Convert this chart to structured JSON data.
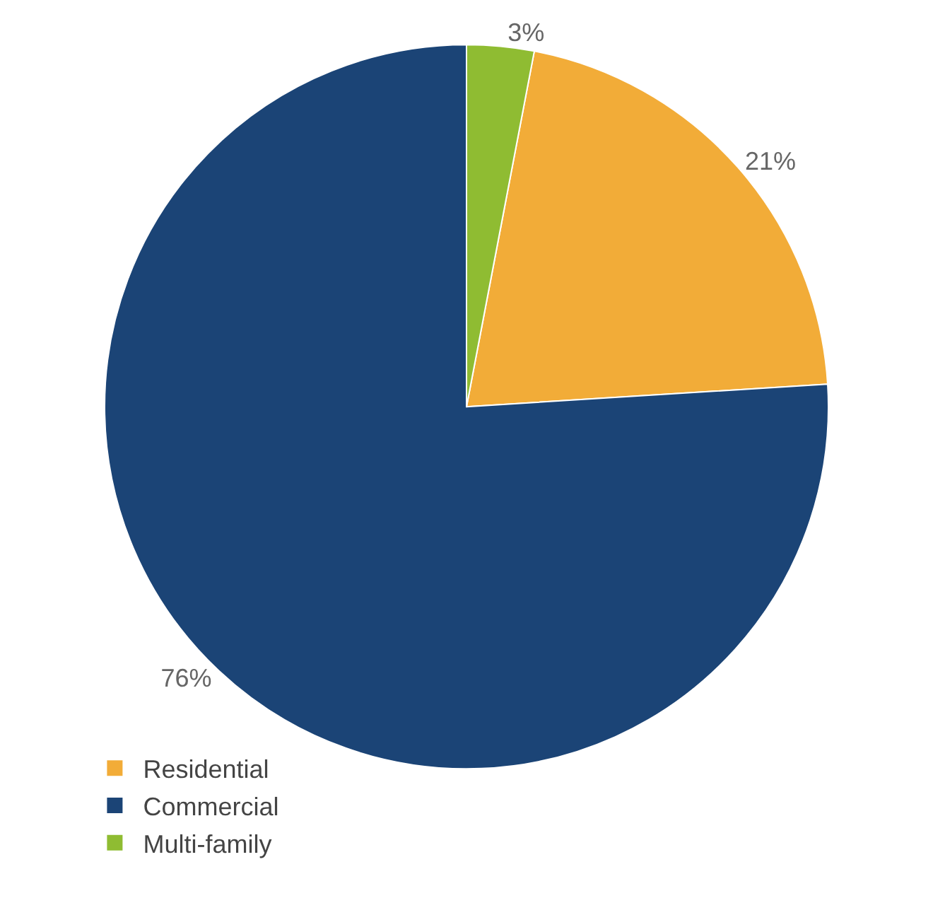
{
  "chart_data": {
    "type": "pie",
    "categories": [
      "Residential",
      "Commercial",
      "Multi-family"
    ],
    "values": [
      21,
      76,
      3
    ],
    "colors": [
      "#f2ac38",
      "#1b4476",
      "#8fbc32"
    ],
    "value_labels": [
      "21%",
      "76%",
      "3%"
    ],
    "legend": "bottom left"
  }
}
